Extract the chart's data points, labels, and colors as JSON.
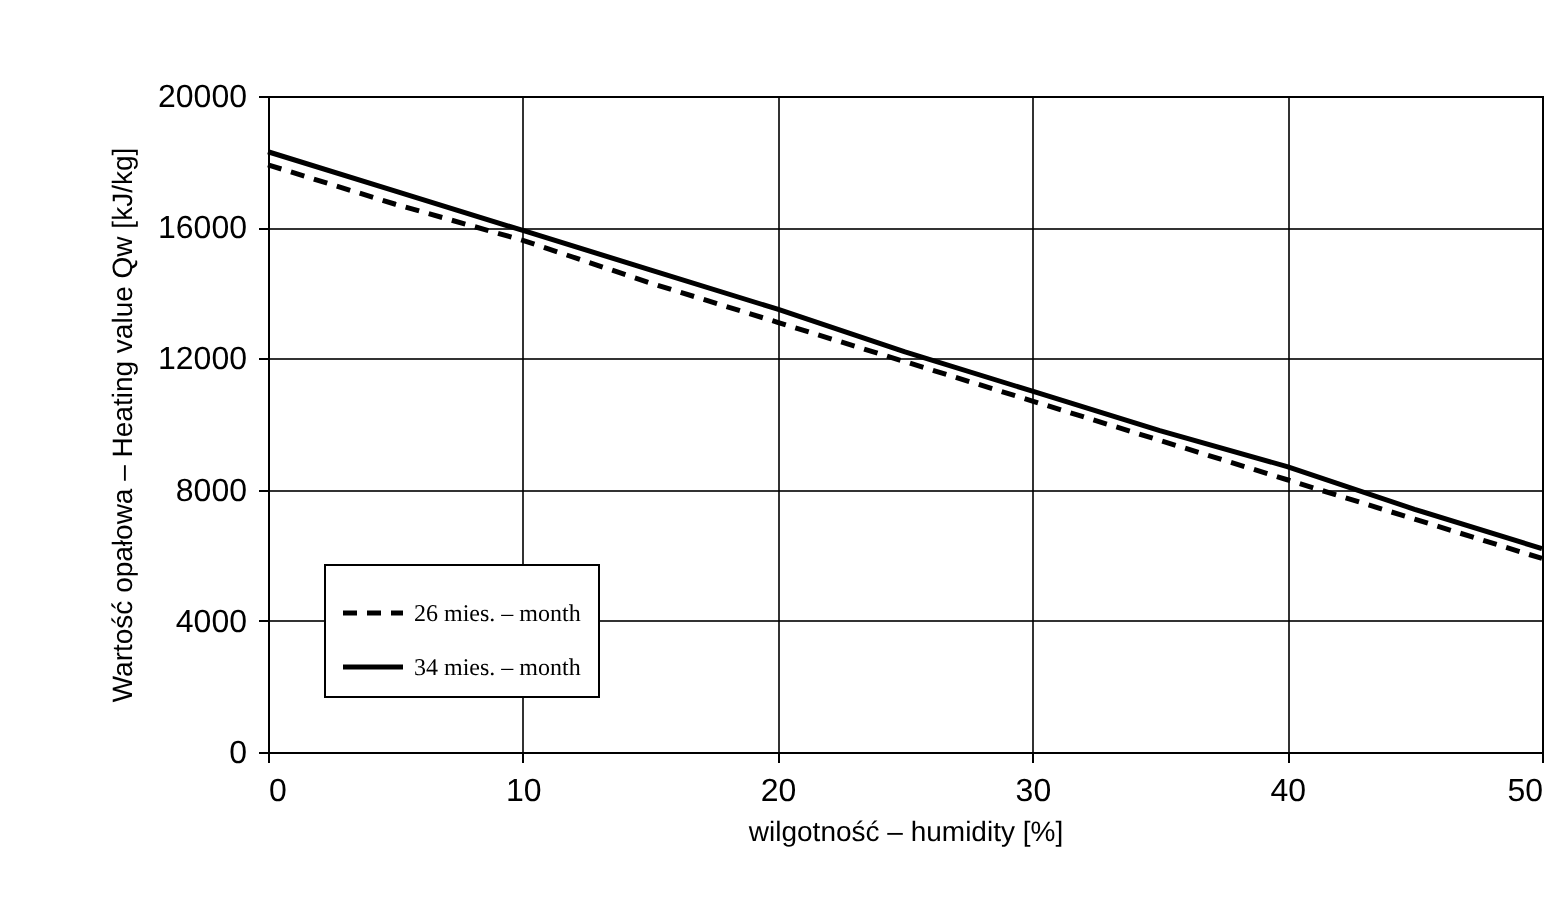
{
  "chart_data": {
    "type": "line",
    "xlabel": "wilgotność – humidity [%]",
    "ylabel": "Wartość opałowa – Heating value Qw [kJ/kg]",
    "x": [
      0,
      5,
      10,
      15,
      20,
      25,
      30,
      35,
      40,
      45,
      50
    ],
    "series": [
      {
        "name": "26 mies. – month",
        "color": "#000000",
        "line_style": "dashed",
        "values": [
          17900,
          16700,
          15600,
          14300,
          13100,
          11900,
          10700,
          9500,
          8300,
          7100,
          5900
        ]
      },
      {
        "name": "34 mies. – month",
        "color": "#000000",
        "line_style": "solid",
        "values": [
          18300,
          17100,
          15900,
          14700,
          13500,
          12200,
          11000,
          9800,
          8700,
          7400,
          6200
        ]
      }
    ],
    "xlim": [
      0,
      50
    ],
    "xticks": [
      0,
      10,
      20,
      30,
      40,
      50
    ],
    "ylim": [
      0,
      20000
    ],
    "yticks": [
      0,
      4000,
      8000,
      12000,
      16000,
      20000
    ],
    "grid": true,
    "legend": "bottom left",
    "marker": "none"
  }
}
